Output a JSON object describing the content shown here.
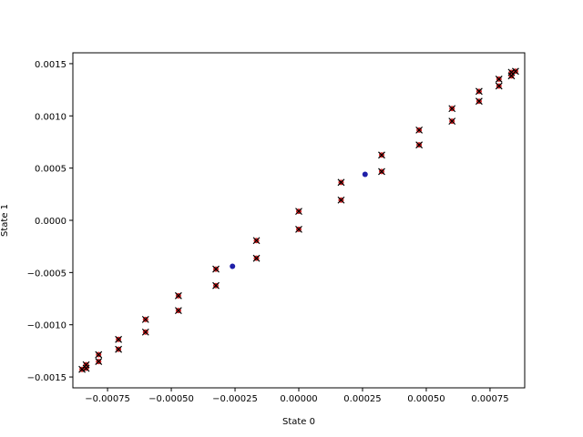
{
  "chart_data": {
    "type": "scatter",
    "xlabel": "State 0",
    "ylabel": "State 1",
    "xlim": [
      -0.000886,
      0.000886
    ],
    "ylim": [
      -0.001604,
      0.001604
    ],
    "xticks": [
      {
        "value": -0.00075,
        "label": "−0.00075"
      },
      {
        "value": -0.0005,
        "label": "−0.00050"
      },
      {
        "value": -0.00025,
        "label": "−0.00025"
      },
      {
        "value": 0,
        "label": "0.00000"
      },
      {
        "value": 0.00025,
        "label": "0.00025"
      },
      {
        "value": 0.0005,
        "label": "0.00050"
      },
      {
        "value": 0.00075,
        "label": "0.00075"
      }
    ],
    "yticks": [
      {
        "value": -0.0015,
        "label": "−0.0015"
      },
      {
        "value": -0.001,
        "label": "−0.0010"
      },
      {
        "value": -0.0005,
        "label": "−0.0005"
      },
      {
        "value": 0,
        "label": "0.0000"
      },
      {
        "value": 0.0005,
        "label": "0.0005"
      },
      {
        "value": 0.001,
        "label": "0.0010"
      },
      {
        "value": 0.0015,
        "label": "0.0015"
      }
    ],
    "series": [
      {
        "marker": "o",
        "color": "#d62728",
        "x": [
          0.00085,
          0.000834,
          0.000785,
          0.000707,
          0.000601,
          0.000472,
          0.000325,
          0.000166,
          0,
          -0.000166,
          -0.000325,
          -0.000472,
          -0.000601,
          -0.000707,
          -0.000785,
          -0.000834,
          -0.00085,
          -0.000834,
          -0.000785,
          -0.000707,
          -0.000601,
          -0.000472,
          -0.000325,
          -0.000166,
          0,
          0.000166,
          0.000325,
          0.000472,
          0.000601,
          0.000707,
          0.000785,
          0.000834
        ],
        "values": [
          0.001427,
          0.001383,
          0.001286,
          0.00114,
          0.000949,
          0.000722,
          0.000467,
          0.000194,
          -8.6e-05,
          -0.000363,
          -0.000625,
          -0.000864,
          -0.00107,
          -0.001235,
          -0.001352,
          -0.001417,
          -0.001427,
          -0.001383,
          -0.001286,
          -0.00114,
          -0.000949,
          -0.000722,
          -0.000467,
          -0.000194,
          8.6e-05,
          0.000363,
          0.000625,
          0.000864,
          0.00107,
          0.001235,
          0.001352,
          0.001417
        ]
      },
      {
        "marker": "x",
        "color": "#000000",
        "x": [
          0.00085,
          0.000834,
          0.000785,
          0.000707,
          0.000601,
          0.000472,
          0.000325,
          0.000166,
          0,
          -0.000166,
          -0.000325,
          -0.000472,
          -0.000601,
          -0.000707,
          -0.000785,
          -0.000834,
          -0.00085,
          -0.000834,
          -0.000785,
          -0.000707,
          -0.000601,
          -0.000472,
          -0.000325,
          -0.000166,
          0,
          0.000166,
          0.000325,
          0.000472,
          0.000601,
          0.000707,
          0.000785,
          0.000834
        ],
        "values": [
          0.001427,
          0.001383,
          0.001286,
          0.00114,
          0.000949,
          0.000722,
          0.000467,
          0.000194,
          -8.6e-05,
          -0.000363,
          -0.000625,
          -0.000864,
          -0.00107,
          -0.001235,
          -0.001352,
          -0.001417,
          -0.001427,
          -0.001383,
          -0.001286,
          -0.00114,
          -0.000949,
          -0.000722,
          -0.000467,
          -0.000194,
          8.6e-05,
          0.000363,
          0.000625,
          0.000864,
          0.00107,
          0.001235,
          0.001352,
          0.001417
        ]
      },
      {
        "marker": "o",
        "color": "#1f1fa8",
        "x": [
          0.00026,
          -0.00026
        ],
        "values": [
          0.00044,
          -0.00044
        ]
      }
    ]
  }
}
